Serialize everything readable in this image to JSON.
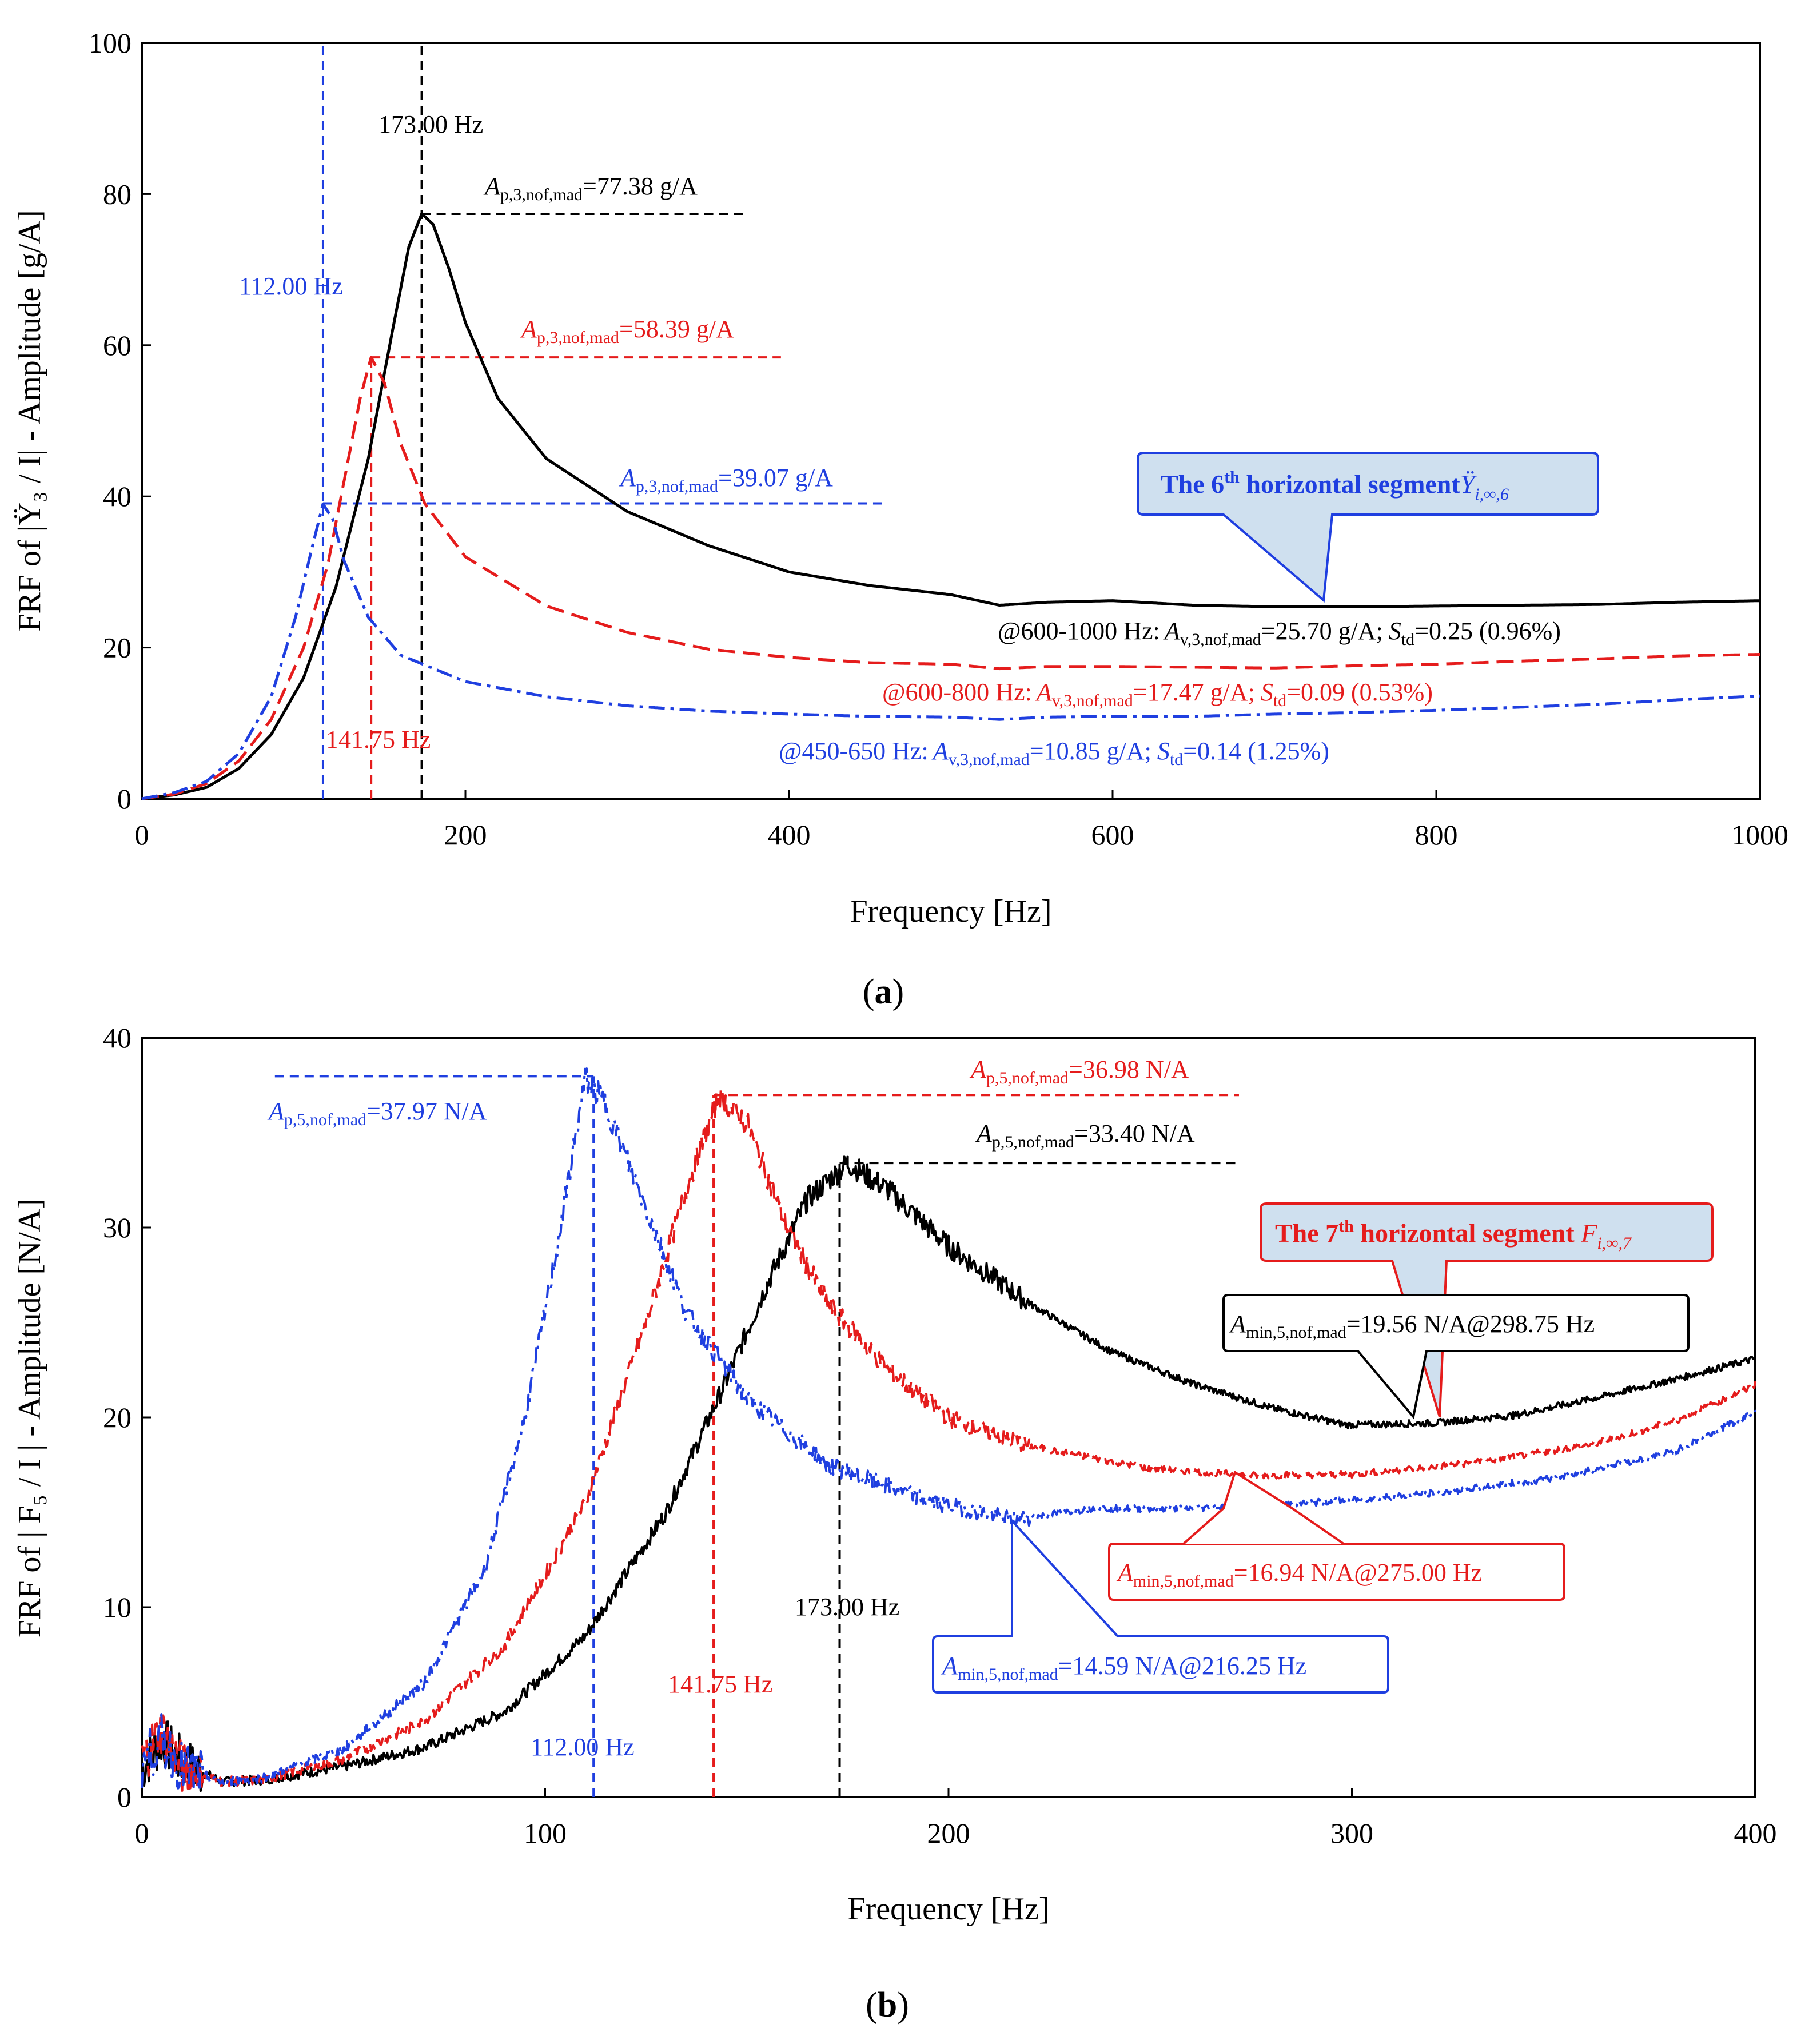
{
  "colors": {
    "black": "#000000",
    "red": "#e51c1c",
    "blue": "#1f3fe0",
    "box_fill": "#cfe0ef"
  },
  "chart_data": [
    {
      "id": "a",
      "type": "line",
      "caption_letter": "a",
      "xlabel": "Frequency [Hz]",
      "ylabel": "FRF of |Ÿ₃ / I| - Amplitude [g/A]",
      "xlim": [
        0,
        1000
      ],
      "ylim": [
        0,
        100
      ],
      "xticks": [
        0,
        200,
        400,
        600,
        800,
        1000
      ],
      "yticks": [
        0,
        20,
        40,
        60,
        80,
        100
      ],
      "series": [
        {
          "name": "black",
          "color": "black",
          "style": "solid",
          "points": [
            [
              0,
              0
            ],
            [
              20,
              0.5
            ],
            [
              40,
              1.5
            ],
            [
              60,
              4
            ],
            [
              80,
              8.5
            ],
            [
              100,
              16
            ],
            [
              120,
              28
            ],
            [
              140,
              45
            ],
            [
              155,
              62
            ],
            [
              165,
              73
            ],
            [
              173,
              77.4
            ],
            [
              180,
              76
            ],
            [
              190,
              70
            ],
            [
              200,
              63
            ],
            [
              220,
              53
            ],
            [
              250,
              45
            ],
            [
              300,
              38
            ],
            [
              350,
              33.5
            ],
            [
              400,
              30
            ],
            [
              450,
              28.2
            ],
            [
              500,
              27
            ],
            [
              530,
              25.6
            ],
            [
              560,
              26
            ],
            [
              600,
              26.2
            ],
            [
              650,
              25.6
            ],
            [
              700,
              25.4
            ],
            [
              760,
              25.4
            ],
            [
              800,
              25.5
            ],
            [
              850,
              25.6
            ],
            [
              900,
              25.7
            ],
            [
              950,
              26
            ],
            [
              1000,
              26.2
            ]
          ]
        },
        {
          "name": "red",
          "color": "red",
          "style": "dashed",
          "points": [
            [
              0,
              0
            ],
            [
              20,
              0.6
            ],
            [
              40,
              2
            ],
            [
              60,
              5
            ],
            [
              80,
              10.5
            ],
            [
              100,
              20
            ],
            [
              115,
              31
            ],
            [
              125,
              42
            ],
            [
              135,
              53
            ],
            [
              141.75,
              58.4
            ],
            [
              150,
              55
            ],
            [
              160,
              47
            ],
            [
              175,
              39
            ],
            [
              200,
              32
            ],
            [
              250,
              25.5
            ],
            [
              300,
              22
            ],
            [
              350,
              19.8
            ],
            [
              400,
              18.7
            ],
            [
              450,
              18
            ],
            [
              500,
              17.8
            ],
            [
              530,
              17.2
            ],
            [
              560,
              17.5
            ],
            [
              600,
              17.5
            ],
            [
              700,
              17.3
            ],
            [
              750,
              17.6
            ],
            [
              800,
              17.8
            ],
            [
              850,
              18.2
            ],
            [
              900,
              18.5
            ],
            [
              950,
              18.9
            ],
            [
              1000,
              19.1
            ]
          ]
        },
        {
          "name": "blue",
          "color": "blue",
          "style": "dashdot",
          "points": [
            [
              0,
              0
            ],
            [
              20,
              0.8
            ],
            [
              40,
              2.3
            ],
            [
              60,
              6
            ],
            [
              80,
              13.5
            ],
            [
              95,
              24
            ],
            [
              105,
              33
            ],
            [
              112,
              39
            ],
            [
              118,
              37
            ],
            [
              125,
              31.5
            ],
            [
              140,
              24
            ],
            [
              160,
              19
            ],
            [
              200,
              15.5
            ],
            [
              250,
              13.5
            ],
            [
              300,
              12.3
            ],
            [
              350,
              11.6
            ],
            [
              400,
              11.2
            ],
            [
              450,
              10.9
            ],
            [
              500,
              10.8
            ],
            [
              530,
              10.5
            ],
            [
              560,
              10.8
            ],
            [
              600,
              10.9
            ],
            [
              650,
              10.9
            ],
            [
              700,
              11.2
            ],
            [
              750,
              11.4
            ],
            [
              800,
              11.7
            ],
            [
              850,
              12.1
            ],
            [
              900,
              12.5
            ],
            [
              950,
              13.1
            ],
            [
              1000,
              13.6
            ]
          ]
        }
      ],
      "peak_lines": [
        {
          "color": "black",
          "freq": 173.0,
          "label": "173.00 Hz",
          "amp": 77.38,
          "hline_to": 375,
          "text_main": "A",
          "text_sub": "p,3,nof,mad",
          "text_rest": "=77.38 g/A"
        },
        {
          "color": "red",
          "freq": 141.75,
          "label": "141.75 Hz",
          "amp": 58.39,
          "hline_to": 395,
          "text_main": "A",
          "text_sub": "p,3,nof,mad",
          "text_rest": "=58.39 g/A"
        },
        {
          "color": "blue",
          "freq": 112.0,
          "label": "112.00 Hz",
          "amp": 39.07,
          "hline_to": 458,
          "text_main": "A",
          "text_sub": "p,3,nof,mad",
          "text_rest": "=39.07 g/A"
        }
      ],
      "avg_labels": [
        {
          "color": "black",
          "range": "@600-1000 Hz:",
          "A_sub": "v,3,nof,mad",
          "A_val": "=25.70 g/A;",
          "S_sub": "td",
          "S_val": "=0.25 (0.96%)"
        },
        {
          "color": "red",
          "range": "@600-800 Hz:",
          "A_sub": "v,3,nof,mad",
          "A_val": "=17.47 g/A;",
          "S_sub": "td",
          "S_val": "=0.09 (0.53%)"
        },
        {
          "color": "blue",
          "range": "@450-650 Hz:",
          "A_sub": "v,3,nof,mad",
          "A_val": "=10.85 g/A;",
          "S_sub": "td",
          "S_val": "=0.14 (1.25%)"
        }
      ],
      "callout": {
        "title": "The 6",
        "sup": "th",
        "rest": " horizontal segment",
        "sym": "Ÿ",
        "sym_sub": "i,∞,6"
      }
    },
    {
      "id": "b",
      "type": "line",
      "caption_letter": "b",
      "xlabel": "Frequency [Hz]",
      "ylabel": "FRF of | F₅ / I | - Amplitude [N/A]",
      "xlim": [
        0,
        400
      ],
      "ylim": [
        0,
        40
      ],
      "xticks": [
        0,
        100,
        200,
        300,
        400
      ],
      "yticks": [
        0,
        10,
        20,
        30,
        40
      ],
      "series": [
        {
          "name": "black",
          "color": "black",
          "style": "solid",
          "points": [
            [
              0,
              1.5
            ],
            [
              5,
              3
            ],
            [
              10,
              1.8
            ],
            [
              20,
              0.8
            ],
            [
              30,
              0.9
            ],
            [
              50,
              1.6
            ],
            [
              70,
              2.6
            ],
            [
              90,
              4.5
            ],
            [
              110,
              8.5
            ],
            [
              130,
              15
            ],
            [
              145,
              22
            ],
            [
              155,
              27
            ],
            [
              165,
              31.5
            ],
            [
              175,
              33.4
            ],
            [
              185,
              32
            ],
            [
              200,
              29
            ],
            [
              220,
              26
            ],
            [
              240,
              23.5
            ],
            [
              260,
              21.8
            ],
            [
              280,
              20.5
            ],
            [
              298.75,
              19.6
            ],
            [
              320,
              19.7
            ],
            [
              340,
              20.1
            ],
            [
              360,
              21
            ],
            [
              380,
              22
            ],
            [
              400,
              23.1
            ]
          ]
        },
        {
          "name": "red",
          "color": "red",
          "style": "dashed",
          "points": [
            [
              0,
              2
            ],
            [
              5,
              3.5
            ],
            [
              10,
              1.5
            ],
            [
              20,
              0.8
            ],
            [
              30,
              0.9
            ],
            [
              50,
              2
            ],
            [
              70,
              4
            ],
            [
              90,
              8
            ],
            [
              110,
              15.5
            ],
            [
              125,
              25
            ],
            [
              135,
              32
            ],
            [
              143,
              36.9
            ],
            [
              150,
              35.5
            ],
            [
              160,
              30
            ],
            [
              170,
              26
            ],
            [
              185,
              22.5
            ],
            [
              200,
              20
            ],
            [
              220,
              18.5
            ],
            [
              250,
              17.3
            ],
            [
              275,
              16.94
            ],
            [
              300,
              17
            ],
            [
              330,
              17.6
            ],
            [
              360,
              18.6
            ],
            [
              380,
              19.8
            ],
            [
              400,
              21.7
            ]
          ]
        },
        {
          "name": "blue",
          "color": "blue",
          "style": "dashdot",
          "points": [
            [
              0,
              1.8
            ],
            [
              5,
              3
            ],
            [
              10,
              1.5
            ],
            [
              20,
              0.8
            ],
            [
              30,
              1
            ],
            [
              50,
              2.5
            ],
            [
              70,
              6
            ],
            [
              85,
              12
            ],
            [
              95,
              20
            ],
            [
              103,
              29
            ],
            [
              110,
              37.9
            ],
            [
              115,
              36.5
            ],
            [
              125,
              31
            ],
            [
              135,
              25.5
            ],
            [
              150,
              21
            ],
            [
              170,
              17.5
            ],
            [
              195,
              15.6
            ],
            [
              216.25,
              14.6
            ],
            [
              235,
              15.2
            ],
            [
              260,
              15.2
            ],
            [
              290,
              15.5
            ],
            [
              320,
              16
            ],
            [
              350,
              16.8
            ],
            [
              380,
              18.2
            ],
            [
              400,
              20.3
            ]
          ]
        }
      ],
      "peak_lines": [
        {
          "color": "blue",
          "freq": 112.0,
          "label": "112.00 Hz",
          "amp": 37.97,
          "hline_from": 33,
          "text_main": "A",
          "text_sub": "p,5,nof,mad",
          "text_rest": "=37.97 N/A"
        },
        {
          "color": "red",
          "freq": 141.75,
          "label": "141.75 Hz",
          "amp": 36.98,
          "hline_to": 272,
          "text_main": "A",
          "text_sub": "p,5,nof,mad",
          "text_rest": "=36.98 N/A"
        },
        {
          "color": "black",
          "freq": 173.0,
          "label": "173.00 Hz",
          "amp": 33.4,
          "hline_to": 272,
          "text_main": "A",
          "text_sub": "p,5,nof,mad",
          "text_rest": "=33.40 N/A"
        }
      ],
      "min_labels": [
        {
          "color": "black",
          "freq": 298.75,
          "amp": 19.56,
          "text_main": "A",
          "text_sub": "min,5,nof,mad",
          "text_rest": "=19.56 N/A@298.75 Hz"
        },
        {
          "color": "red",
          "freq": 275.0,
          "amp": 16.94,
          "text_main": "A",
          "text_sub": "min,5,nof,mad",
          "text_rest": "=16.94 N/A@275.00 Hz"
        },
        {
          "color": "blue",
          "freq": 216.25,
          "amp": 14.59,
          "text_main": "A",
          "text_sub": "min,5,nof,mad",
          "text_rest": "=14.59 N/A@216.25 Hz"
        }
      ],
      "callout": {
        "title": "The 7",
        "sup": "th",
        "rest": " horizontal segment ",
        "sym": "F",
        "sym_sub": "i,∞,7"
      }
    }
  ]
}
